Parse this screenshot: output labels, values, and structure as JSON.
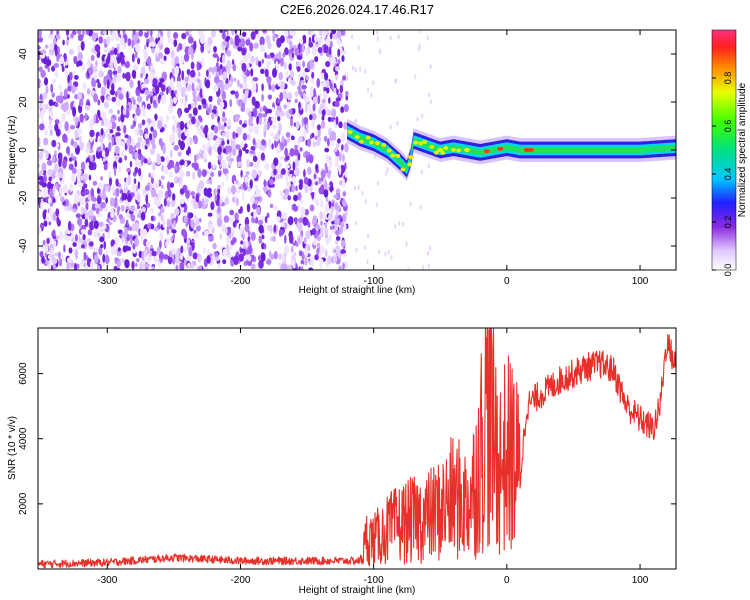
{
  "chart_data": [
    {
      "type": "heatmap",
      "title": "C2E6.2026.024.17.46.R17",
      "xlabel": "Height of straight line (km)",
      "ylabel": "Frequency (Hz)",
      "xlim": [
        -352,
        127
      ],
      "ylim": [
        -50,
        50
      ],
      "xticks": [
        -300,
        -200,
        -100,
        0,
        100
      ],
      "yticks": [
        -40,
        -20,
        0,
        20,
        40
      ],
      "noise_region_x": [
        -352,
        -120
      ],
      "ridge": {
        "name": "Doppler ridge",
        "x": [
          -120,
          -110,
          -100,
          -90,
          -80,
          -75,
          -72,
          -70,
          -60,
          -50,
          -40,
          -30,
          -20,
          -10,
          0,
          10,
          20,
          40,
          60,
          80,
          100,
          127
        ],
        "y": [
          8,
          5,
          3,
          0,
          -5,
          -8,
          -3,
          4,
          2,
          0,
          1,
          0,
          -1,
          0,
          1,
          0,
          0,
          0,
          0,
          0,
          0,
          1
        ]
      },
      "colorbar": {
        "label": "Normalized spectral amplitude",
        "range": [
          0,
          1
        ],
        "ticks": [
          "0.0",
          "0.2",
          "0.4",
          "0.6",
          "0.8"
        ]
      }
    },
    {
      "type": "line",
      "xlabel": "Height of straight line (km)",
      "ylabel": "SNR (10 * v/v)",
      "xlim": [
        -352,
        127
      ],
      "ylim": [
        0,
        7400
      ],
      "xticks": [
        -300,
        -200,
        -100,
        0,
        100
      ],
      "yticks": [
        2000,
        4000,
        6000
      ],
      "series": [
        {
          "name": "SNR",
          "color": "#e8302a",
          "x": [
            -352,
            -300,
            -250,
            -200,
            -150,
            -110,
            -105,
            -100,
            -90,
            -80,
            -70,
            -60,
            -50,
            -40,
            -30,
            -25,
            -20,
            -15,
            -10,
            -5,
            0,
            5,
            10,
            15,
            20,
            30,
            40,
            50,
            60,
            70,
            80,
            90,
            100,
            110,
            115,
            120,
            127
          ],
          "y": [
            150,
            200,
            350,
            250,
            250,
            250,
            1000,
            900,
            1200,
            1400,
            1500,
            1600,
            1800,
            2200,
            2000,
            2500,
            3500,
            5000,
            4000,
            3200,
            3500,
            3500,
            2800,
            5000,
            5200,
            5500,
            5800,
            6000,
            6200,
            6300,
            6100,
            5000,
            4600,
            4300,
            5000,
            7000,
            6200
          ]
        }
      ]
    }
  ]
}
